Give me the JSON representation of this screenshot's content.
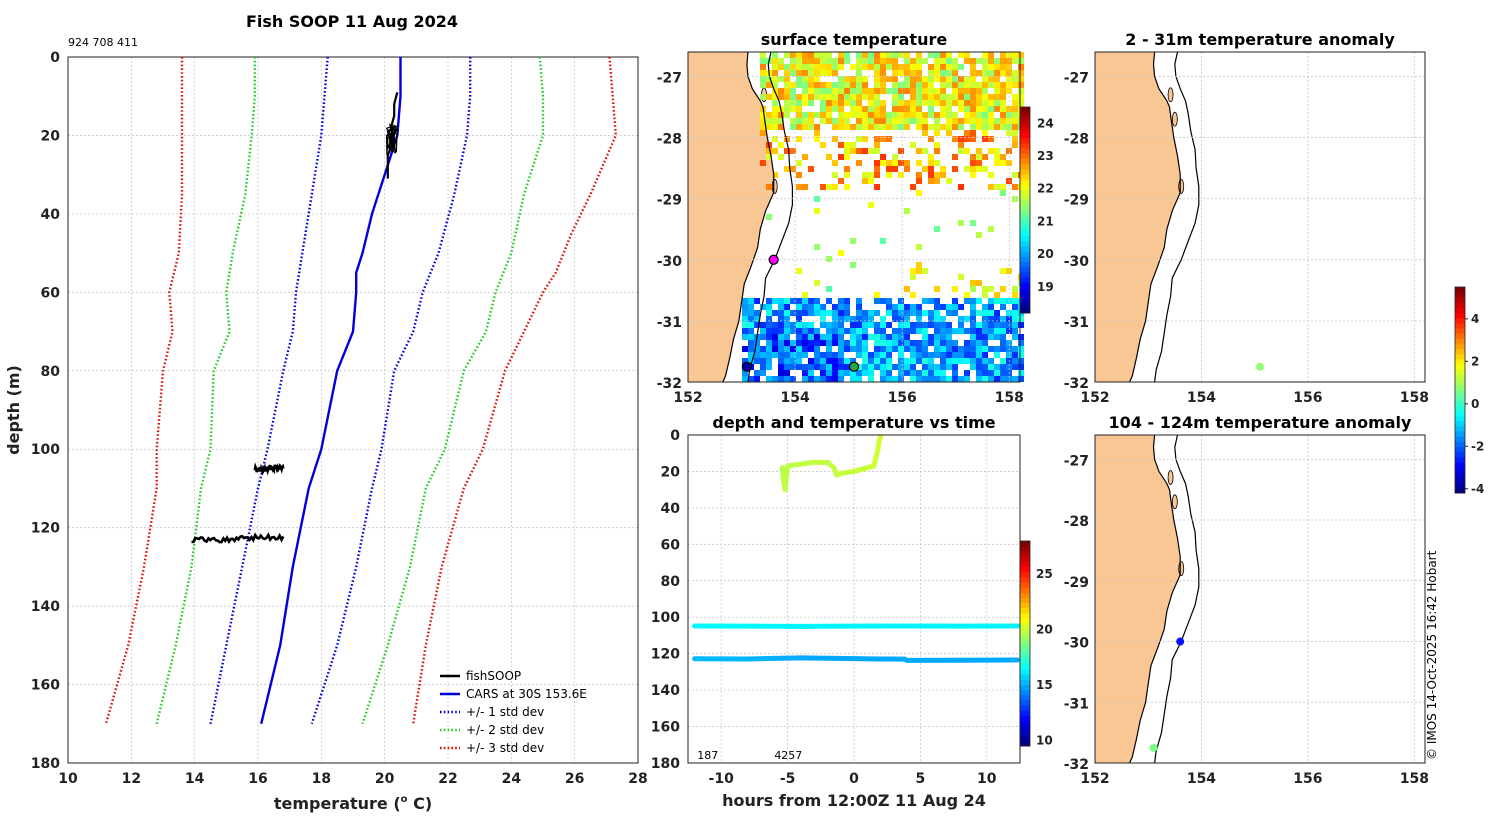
{
  "title": "Fish SOOP 11 Aug 2024",
  "id_text": "924 708 411",
  "copyright": "© IMOS 14-Oct-2025 16:42 Hobart",
  "colors": {
    "land": "#f9c794",
    "fish": "#000000",
    "cars": "#0000dd",
    "std1": "#0000dd",
    "std2": "#22cc22",
    "std3": "#dd1100",
    "grid": "#c8c8c8",
    "magenta": "#ff00ff"
  },
  "chart_data": [
    {
      "type": "line",
      "id": "profile",
      "title": "Fish SOOP 11 Aug 2024",
      "xlabel": "temperature (",
      "xlabel_sup": "o",
      "xlabel_end": " C)",
      "ylabel": "depth (m)",
      "xlim": [
        10,
        28
      ],
      "ylim": [
        180,
        0
      ],
      "xticks": [
        "10",
        "12",
        "14",
        "16",
        "18",
        "20",
        "22",
        "24",
        "26",
        "28"
      ],
      "yticks": [
        "0",
        "20",
        "40",
        "60",
        "80",
        "100",
        "120",
        "140",
        "160",
        "180"
      ],
      "legend": [
        "fishSOOP",
        "CARS at 30S 153.6E",
        "+/- 1 std dev",
        "+/- 2 std dev",
        "+/- 3 std dev"
      ],
      "legend_position": "bottom-right",
      "series": [
        {
          "name": "CARS at 30S 153.6E",
          "style": "solid",
          "color": "#0000dd",
          "points": [
            [
              20.5,
              0
            ],
            [
              20.5,
              3
            ],
            [
              20.5,
              10
            ],
            [
              20.4,
              20
            ],
            [
              20.0,
              30
            ],
            [
              19.6,
              40
            ],
            [
              19.3,
              50
            ],
            [
              19.1,
              55
            ],
            [
              19.1,
              60
            ],
            [
              19.0,
              70
            ],
            [
              18.5,
              80
            ],
            [
              18.0,
              100
            ],
            [
              17.6,
              110
            ],
            [
              17.1,
              130
            ],
            [
              16.7,
              150
            ],
            [
              16.1,
              170
            ]
          ]
        },
        {
          "name": "-1 std",
          "style": "dotted",
          "color": "#0000dd",
          "points": [
            [
              18.2,
              0
            ],
            [
              18.1,
              10
            ],
            [
              18.0,
              20
            ],
            [
              17.7,
              35
            ],
            [
              17.4,
              50
            ],
            [
              17.2,
              60
            ],
            [
              17.1,
              70
            ],
            [
              16.8,
              80
            ],
            [
              16.3,
              100
            ],
            [
              16.0,
              110
            ],
            [
              15.5,
              130
            ],
            [
              15.0,
              150
            ],
            [
              14.5,
              170
            ]
          ]
        },
        {
          "name": "+1 std",
          "style": "dotted",
          "color": "#0000dd",
          "points": [
            [
              22.7,
              0
            ],
            [
              22.7,
              10
            ],
            [
              22.6,
              20
            ],
            [
              22.2,
              35
            ],
            [
              21.7,
              50
            ],
            [
              21.2,
              60
            ],
            [
              20.9,
              70
            ],
            [
              20.3,
              80
            ],
            [
              19.9,
              100
            ],
            [
              19.6,
              110
            ],
            [
              19.1,
              130
            ],
            [
              18.5,
              150
            ],
            [
              17.7,
              170
            ]
          ]
        },
        {
          "name": "-2 std",
          "style": "dotted",
          "color": "#22cc22",
          "points": [
            [
              15.9,
              0
            ],
            [
              15.9,
              10
            ],
            [
              15.8,
              20
            ],
            [
              15.6,
              35
            ],
            [
              15.2,
              50
            ],
            [
              15.0,
              60
            ],
            [
              15.1,
              70
            ],
            [
              14.6,
              80
            ],
            [
              14.5,
              100
            ],
            [
              14.2,
              110
            ],
            [
              13.9,
              130
            ],
            [
              13.4,
              150
            ],
            [
              12.8,
              170
            ]
          ]
        },
        {
          "name": "+2 std",
          "style": "dotted",
          "color": "#22cc22",
          "points": [
            [
              24.9,
              0
            ],
            [
              25.0,
              10
            ],
            [
              25.0,
              20
            ],
            [
              24.4,
              35
            ],
            [
              24.0,
              50
            ],
            [
              23.5,
              60
            ],
            [
              23.2,
              70
            ],
            [
              22.5,
              80
            ],
            [
              21.9,
              100
            ],
            [
              21.3,
              110
            ],
            [
              20.8,
              130
            ],
            [
              20.1,
              150
            ],
            [
              19.3,
              170
            ]
          ]
        },
        {
          "name": "-3 std",
          "style": "dotted",
          "color": "#dd1100",
          "points": [
            [
              13.6,
              0
            ],
            [
              13.6,
              10
            ],
            [
              13.6,
              20
            ],
            [
              13.6,
              35
            ],
            [
              13.5,
              50
            ],
            [
              13.2,
              60
            ],
            [
              13.3,
              70
            ],
            [
              13.0,
              80
            ],
            [
              12.8,
              100
            ],
            [
              12.8,
              110
            ],
            [
              12.4,
              130
            ],
            [
              11.9,
              150
            ],
            [
              11.2,
              170
            ]
          ]
        },
        {
          "name": "+3 std",
          "style": "dotted",
          "color": "#dd1100",
          "points": [
            [
              27.1,
              0
            ],
            [
              27.2,
              10
            ],
            [
              27.3,
              20
            ],
            [
              26.5,
              35
            ],
            [
              25.9,
              45
            ],
            [
              25.4,
              55
            ],
            [
              25.0,
              60
            ],
            [
              24.4,
              70
            ],
            [
              23.8,
              80
            ],
            [
              23.1,
              100
            ],
            [
              22.5,
              110
            ],
            [
              21.8,
              130
            ],
            [
              21.3,
              150
            ],
            [
              20.9,
              170
            ]
          ]
        },
        {
          "name": "fishSOOP",
          "style": "solid",
          "color": "#000000",
          "points": [
            [
              20.4,
              9
            ],
            [
              20.3,
              12
            ],
            [
              20.3,
              15
            ],
            [
              20.2,
              18
            ],
            [
              20.3,
              21
            ],
            [
              20.1,
              25
            ],
            [
              20.1,
              31
            ]
          ]
        }
      ],
      "fish_segments": [
        {
          "depth": 104.9,
          "tmin": 15.9,
          "tmax": 16.8
        },
        {
          "depth": 122.8,
          "tmin": 13.9,
          "tmax": 16.8
        }
      ]
    },
    {
      "type": "map",
      "id": "sst",
      "title": "surface temperature",
      "xlim": [
        152,
        158.2
      ],
      "ylim": [
        -32,
        -26.6
      ],
      "xticks": [
        "152",
        "154",
        "156",
        "158"
      ],
      "yticks": [
        "-27",
        "-28",
        "-29",
        "-30",
        "-31",
        "-32"
      ],
      "colorbar": {
        "min": 18.2,
        "max": 24.5,
        "ticks": [
          "19",
          "20",
          "21",
          "22",
          "23",
          "24"
        ]
      },
      "markers": [
        {
          "lon": 153.6,
          "lat": -30.0,
          "color": "#ff00ff",
          "ring": true
        },
        {
          "lon": 153.1,
          "lat": -31.75,
          "color": "#0000aa",
          "ring": true
        },
        {
          "lon": 155.1,
          "lat": -31.75,
          "color": "#22aa44",
          "ring": true
        }
      ]
    },
    {
      "type": "map",
      "id": "anom_shallow",
      "title": "2 - 31m temperature anomaly",
      "xlim": [
        152,
        158.2
      ],
      "ylim": [
        -32,
        -26.6
      ],
      "xticks": [
        "152",
        "154",
        "156",
        "158"
      ],
      "yticks": [
        "-27",
        "-28",
        "-29",
        "-30",
        "-31",
        "-32"
      ],
      "points": [
        {
          "lon": 155.1,
          "lat": -31.75,
          "value": 0.8
        }
      ]
    },
    {
      "type": "map",
      "id": "anom_deep",
      "title": "104 - 124m temperature anomaly",
      "xlim": [
        152,
        158.2
      ],
      "ylim": [
        -32,
        -26.6
      ],
      "xticks": [
        "152",
        "154",
        "156",
        "158"
      ],
      "yticks": [
        "-27",
        "-28",
        "-29",
        "-30",
        "-31",
        "-32"
      ],
      "points": [
        {
          "lon": 153.6,
          "lat": -30.0,
          "value": -2.8
        },
        {
          "lon": 153.1,
          "lat": -31.75,
          "value": 0.6
        }
      ]
    },
    {
      "type": "scatter",
      "id": "timeseries",
      "title": "depth and temperature vs time",
      "xlabel": "hours from 12:00Z 11 Aug 24",
      "xlim": [
        -12.5,
        12.5
      ],
      "ylim": [
        180,
        0
      ],
      "xticks": [
        "-10",
        "-5",
        "0",
        "5",
        "10"
      ],
      "yticks": [
        "0",
        "20",
        "40",
        "60",
        "80",
        "100",
        "120",
        "140",
        "160",
        "180"
      ],
      "annotations": [
        "187",
        "4257"
      ],
      "colorbar": {
        "min": 9.5,
        "max": 28,
        "ticks": [
          "10",
          "15",
          "20",
          "25"
        ]
      },
      "tracks": [
        {
          "name": "shallow",
          "t": [
            -5.4,
            -5.3,
            -5.2,
            -5.0,
            -4.0,
            -3.0,
            -2.0,
            -1.5,
            -1.3,
            -1.0,
            0,
            1.0,
            1.5,
            1.8,
            1.9,
            2.0
          ],
          "d": [
            18,
            25,
            30,
            17,
            16,
            15,
            15,
            18,
            22,
            21,
            20,
            18,
            17,
            8,
            3,
            1
          ],
          "temp": [
            19.8,
            19.8,
            19.9,
            19.8,
            19.9,
            20.0,
            19.9,
            19.9,
            20.0,
            20.0,
            20.0,
            20.1,
            20.1,
            20.2,
            20.2,
            20.2
          ]
        },
        {
          "name": "mid",
          "t": [
            -12,
            -8,
            -4,
            0,
            4,
            8,
            12.3
          ],
          "d": [
            104.8,
            104.9,
            105.0,
            104.9,
            104.8,
            104.9,
            104.8
          ],
          "temp": [
            16.4,
            16.3,
            16.3,
            16.2,
            16.3,
            16.2,
            16.3
          ]
        },
        {
          "name": "deep",
          "t": [
            -12,
            -8,
            -6,
            -4,
            -2,
            0,
            2,
            3.8,
            4,
            8,
            12.3
          ],
          "d": [
            122.8,
            122.9,
            122.6,
            122.3,
            122.5,
            122.7,
            122.9,
            123.0,
            123.7,
            123.6,
            123.5
          ],
          "temp": [
            15.2,
            15.1,
            15.0,
            14.9,
            14.8,
            14.9,
            14.9,
            14.8,
            14.9,
            14.9,
            14.9
          ]
        }
      ]
    },
    {
      "type": "colorbar",
      "id": "anomaly_colorbar",
      "min": -4.2,
      "max": 5.5,
      "ticks": [
        "4",
        "2",
        "0",
        "-2",
        "-4"
      ]
    }
  ]
}
